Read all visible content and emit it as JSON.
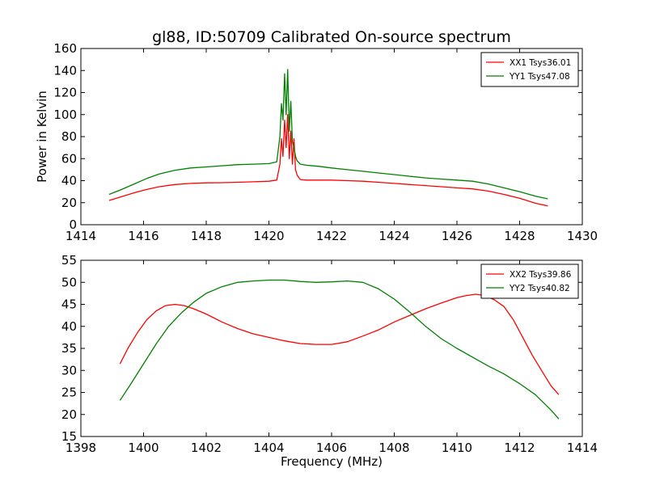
{
  "figure": {
    "title": "gl88, ID:50709 Calibrated On-source spectrum"
  },
  "chart_data": [
    {
      "type": "line",
      "title": "gl88, ID:50709 Calibrated On-source spectrum",
      "xlabel": "",
      "ylabel": "Power in Kelvin",
      "xlim": [
        1414,
        1430
      ],
      "ylim": [
        0,
        160
      ],
      "xticks": [
        1414,
        1416,
        1418,
        1420,
        1422,
        1424,
        1426,
        1428,
        1430
      ],
      "yticks": [
        0,
        20,
        40,
        60,
        80,
        100,
        120,
        140,
        160
      ],
      "grid": false,
      "legend_position": "top-right",
      "series": [
        {
          "name": "XX1 Tsys36.01",
          "color": "#ff0000",
          "x": [
            1414.9,
            1415.3,
            1415.7,
            1416.1,
            1416.5,
            1417.0,
            1417.5,
            1418.0,
            1418.5,
            1419.0,
            1419.5,
            1420.0,
            1420.25,
            1420.35,
            1420.4,
            1420.45,
            1420.5,
            1420.55,
            1420.6,
            1420.65,
            1420.7,
            1420.75,
            1420.8,
            1420.85,
            1420.9,
            1421.0,
            1421.2,
            1421.6,
            1422.0,
            1422.5,
            1423.0,
            1423.5,
            1424.0,
            1424.5,
            1425.0,
            1425.5,
            1426.0,
            1426.5,
            1427.0,
            1427.5,
            1428.0,
            1428.5,
            1428.9
          ],
          "y": [
            22,
            25.5,
            29,
            32,
            34.5,
            36.5,
            37.5,
            38,
            38.2,
            38.5,
            39,
            39.5,
            40.5,
            55,
            78,
            62,
            95,
            70,
            100,
            60,
            85,
            55,
            78,
            50,
            45,
            41,
            40.5,
            40.5,
            40.5,
            40,
            39.5,
            38.5,
            37.5,
            36.5,
            35.5,
            34.5,
            33.5,
            32.5,
            30.5,
            27.5,
            24,
            19.5,
            17
          ]
        },
        {
          "name": "YY1 Tsys47.08",
          "color": "#008000",
          "x": [
            1414.9,
            1415.3,
            1415.7,
            1416.1,
            1416.5,
            1417.0,
            1417.5,
            1418.0,
            1418.5,
            1419.0,
            1419.5,
            1420.0,
            1420.25,
            1420.35,
            1420.4,
            1420.45,
            1420.5,
            1420.55,
            1420.6,
            1420.65,
            1420.7,
            1420.75,
            1420.8,
            1420.85,
            1420.9,
            1421.0,
            1421.2,
            1421.6,
            1422.0,
            1422.5,
            1423.0,
            1423.5,
            1424.0,
            1424.5,
            1425.0,
            1425.5,
            1426.0,
            1426.5,
            1427.0,
            1427.5,
            1428.0,
            1428.5,
            1428.9
          ],
          "y": [
            27.5,
            32,
            37,
            42,
            46,
            49.5,
            51.5,
            52.5,
            53.5,
            54.5,
            55,
            55.5,
            57,
            80,
            110,
            95,
            137,
            100,
            141,
            85,
            112,
            75,
            70,
            62,
            58,
            55,
            54,
            53,
            51.5,
            50,
            48.5,
            47,
            45.5,
            44,
            42.5,
            41.5,
            40.5,
            39.5,
            37,
            33.5,
            30,
            26,
            23.5
          ]
        }
      ]
    },
    {
      "type": "line",
      "title": "",
      "xlabel": "Frequency (MHz)",
      "ylabel": "",
      "xlim": [
        1398,
        1414
      ],
      "ylim": [
        15,
        55
      ],
      "xticks": [
        1398,
        1400,
        1402,
        1404,
        1406,
        1408,
        1410,
        1412,
        1414
      ],
      "yticks": [
        15,
        20,
        25,
        30,
        35,
        40,
        45,
        50,
        55
      ],
      "grid": false,
      "legend_position": "top-right",
      "series": [
        {
          "name": "XX2 Tsys39.86",
          "color": "#ff0000",
          "x": [
            1399.25,
            1399.5,
            1399.8,
            1400.1,
            1400.4,
            1400.7,
            1401.0,
            1401.3,
            1401.6,
            1402.0,
            1402.5,
            1403.0,
            1403.5,
            1404.0,
            1404.5,
            1405.0,
            1405.5,
            1406.0,
            1406.5,
            1407.0,
            1407.5,
            1408.0,
            1408.5,
            1409.0,
            1409.5,
            1410.0,
            1410.3,
            1410.6,
            1410.9,
            1411.2,
            1411.5,
            1411.8,
            1412.1,
            1412.4,
            1412.7,
            1413.0,
            1413.25
          ],
          "y": [
            31.5,
            35,
            38.5,
            41.5,
            43.5,
            44.7,
            45,
            44.7,
            44,
            42.8,
            41,
            39.5,
            38.3,
            37.5,
            36.7,
            36.1,
            35.9,
            35.9,
            36.5,
            37.8,
            39.2,
            41,
            42.5,
            44,
            45.3,
            46.5,
            47,
            47.3,
            47,
            46,
            44.5,
            41.5,
            37.5,
            33.5,
            30,
            26.5,
            24.5
          ]
        },
        {
          "name": "YY2 Tsys40.82",
          "color": "#008000",
          "x": [
            1399.25,
            1399.6,
            1400.0,
            1400.4,
            1400.8,
            1401.2,
            1401.6,
            1402.0,
            1402.5,
            1403.0,
            1403.5,
            1404.0,
            1404.5,
            1405.0,
            1405.5,
            1406.0,
            1406.5,
            1407.0,
            1407.5,
            1408.0,
            1408.5,
            1409.0,
            1409.5,
            1410.0,
            1410.5,
            1411.0,
            1411.5,
            1412.0,
            1412.5,
            1413.0,
            1413.25
          ],
          "y": [
            23.2,
            27,
            31.5,
            36,
            40,
            43,
            45.5,
            47.5,
            49,
            50,
            50.3,
            50.5,
            50.5,
            50.2,
            50,
            50.1,
            50.3,
            50,
            48.5,
            46.2,
            43.2,
            40,
            37.2,
            35,
            33,
            31,
            29.2,
            27,
            24.5,
            21,
            19
          ]
        }
      ]
    }
  ]
}
